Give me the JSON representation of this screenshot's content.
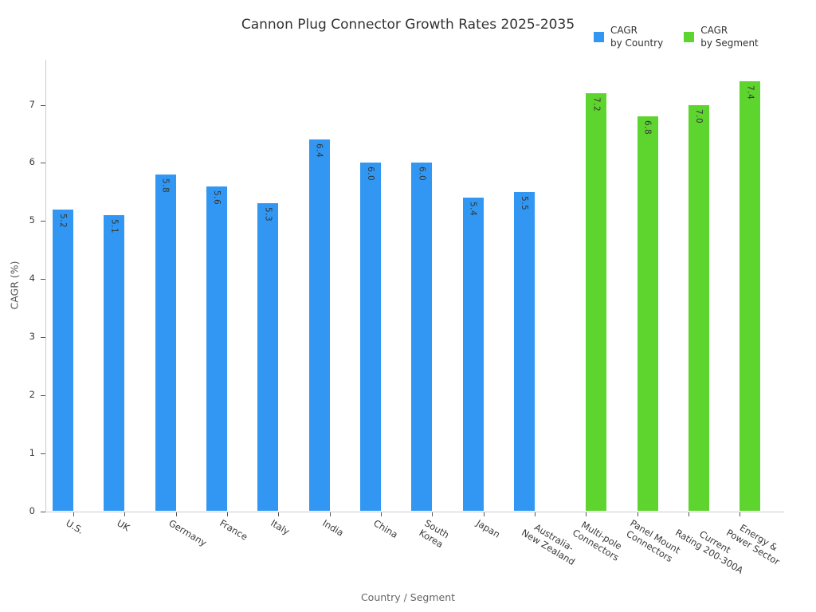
{
  "title": "Cannon Plug Connector Growth Rates 2025-2035",
  "legend": {
    "items": [
      {
        "label": "CAGR\nby Country",
        "color": "#3297F3"
      },
      {
        "label": "CAGR\nby Segment",
        "color": "#5ED42E"
      }
    ]
  },
  "axes": {
    "ylabel": "CAGR (%)",
    "xlabel": "Country / Segment",
    "yticks": [
      0,
      1,
      2,
      3,
      4,
      5,
      6,
      7
    ]
  },
  "chart_data": {
    "type": "bar",
    "title": "Cannon Plug Connector Growth Rates 2025-2035",
    "xlabel": "Country / Segment",
    "ylabel": "CAGR (%)",
    "ylim": [
      0,
      7.77
    ],
    "grid": false,
    "legend_position": "top-right",
    "bar_label_decimals": 1,
    "categories": [
      "U.S.",
      "UK",
      "Germany",
      "France",
      "Italy",
      "India",
      "China",
      "South\nKorea",
      "Japan",
      "Australia-\nNew Zealand",
      "Multi-pole\nConnectors",
      "Panel Mount\nConnectors",
      "Current\nRating 200-300A",
      "Energy &\nPower Sector"
    ],
    "series": [
      {
        "name": "CAGR by Country",
        "color": "#3297F3",
        "align": "left",
        "values": [
          5.2,
          5.1,
          5.8,
          5.6,
          5.3,
          6.4,
          6.0,
          6.0,
          5.4,
          5.5,
          null,
          null,
          null,
          null
        ]
      },
      {
        "name": "CAGR by Segment",
        "color": "#5ED42E",
        "align": "right",
        "values": [
          null,
          null,
          null,
          null,
          null,
          null,
          null,
          null,
          null,
          null,
          7.2,
          6.8,
          7.0,
          7.4
        ]
      }
    ]
  }
}
